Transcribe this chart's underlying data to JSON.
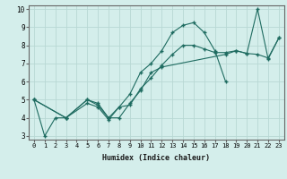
{
  "xlabel": "Humidex (Indice chaleur)",
  "bg_color": "#d4eeeb",
  "grid_color": "#b8d8d4",
  "line_color": "#1e6b60",
  "xlim": [
    -0.5,
    23.5
  ],
  "ylim": [
    2.8,
    10.2
  ],
  "yticks": [
    3,
    4,
    5,
    6,
    7,
    8,
    9,
    10
  ],
  "xticks": [
    0,
    1,
    2,
    3,
    4,
    5,
    6,
    7,
    8,
    9,
    10,
    11,
    12,
    13,
    14,
    15,
    16,
    17,
    18,
    19,
    20,
    21,
    22,
    23
  ],
  "line1_x": [
    0,
    1,
    2,
    3,
    5,
    6,
    7,
    8,
    9,
    10,
    11,
    12,
    13,
    14,
    15,
    16,
    17,
    18
  ],
  "line1_y": [
    5.0,
    3.0,
    4.0,
    4.0,
    5.0,
    4.8,
    4.0,
    4.6,
    5.3,
    6.5,
    7.0,
    7.7,
    8.7,
    9.1,
    9.25,
    8.7,
    7.7,
    6.0
  ],
  "line2_x": [
    0,
    3,
    5,
    6,
    7,
    8,
    9,
    10,
    11,
    12,
    18,
    19,
    20,
    21,
    22,
    23
  ],
  "line2_y": [
    5.0,
    4.0,
    5.0,
    4.7,
    4.0,
    4.0,
    4.8,
    5.5,
    6.5,
    6.8,
    7.5,
    7.7,
    7.55,
    7.5,
    7.3,
    8.4
  ],
  "line3_x": [
    0,
    3,
    5,
    6,
    7,
    8,
    9,
    10,
    11,
    12,
    13,
    14,
    15,
    16,
    17,
    18,
    19,
    20,
    21,
    22,
    23
  ],
  "line3_y": [
    5.0,
    4.0,
    4.8,
    4.6,
    3.9,
    4.6,
    4.7,
    5.6,
    6.2,
    6.9,
    7.5,
    8.0,
    8.0,
    7.8,
    7.6,
    7.6,
    7.7,
    7.55,
    10.0,
    7.25,
    8.4
  ]
}
